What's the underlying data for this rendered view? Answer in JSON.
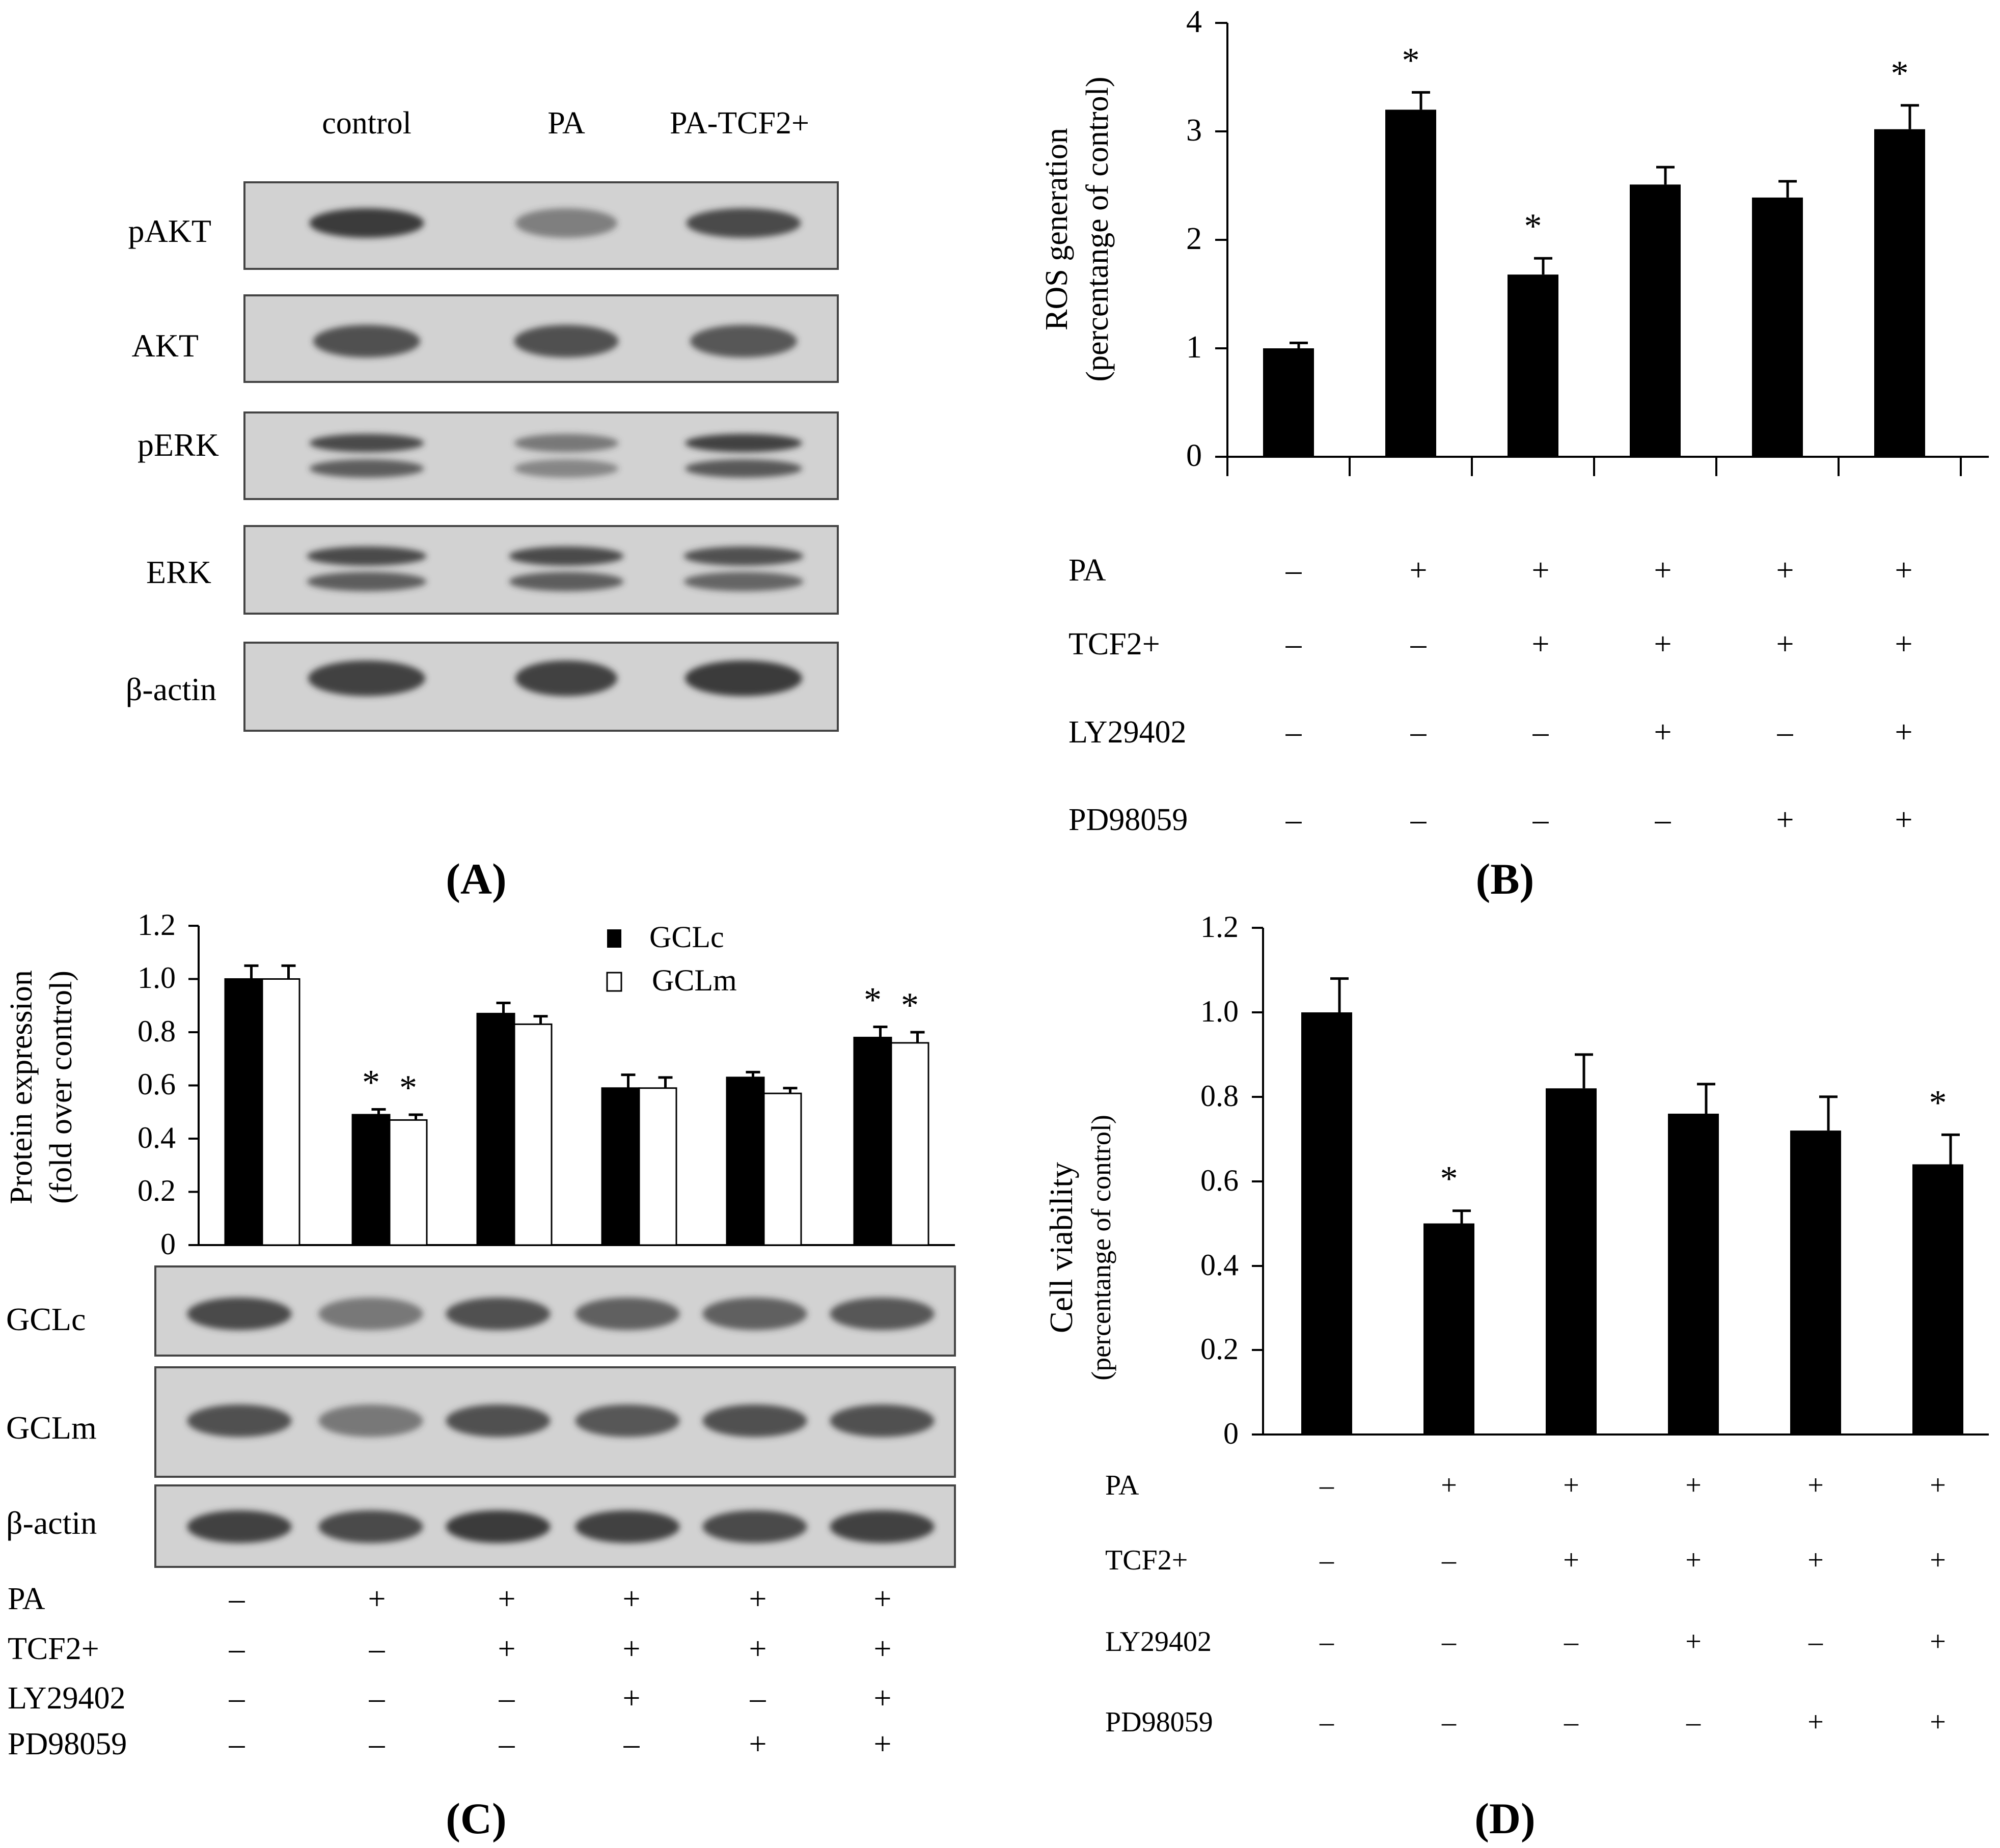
{
  "panels": {
    "A": {
      "label": "(A)",
      "lanes": [
        "control",
        "PA",
        "PA-TCF2+"
      ],
      "rows": [
        "pAKT",
        "AKT",
        "pERK",
        "ERK",
        "β-actin"
      ]
    },
    "B": {
      "label": "(B)"
    },
    "C": {
      "label": "(C)",
      "blot_rows": [
        "GCLc",
        "GCLm",
        "β-actin"
      ]
    },
    "D": {
      "label": "(D)"
    }
  },
  "treatment_rows": [
    "PA",
    "TCF2+",
    "LY29402",
    "PD98059"
  ],
  "treatment_matrix": [
    [
      "–",
      "+",
      "+",
      "+",
      "+",
      "+"
    ],
    [
      "–",
      "–",
      "+",
      "+",
      "+",
      "+"
    ],
    [
      "–",
      "–",
      "–",
      "+",
      "–",
      "+"
    ],
    [
      "–",
      "–",
      "–",
      "–",
      "+",
      "+"
    ]
  ],
  "colors": {
    "bar": "#000000",
    "bar_open": "#ffffff",
    "band": "#3a3a3a",
    "blot_bg": "#d2d2d2"
  },
  "chart_data": [
    {
      "id": "B",
      "type": "bar",
      "ylabel": "ROS generation",
      "ylabel2": "(percentange of control)",
      "ylim": [
        0,
        4
      ],
      "yticks": [
        "0",
        "1",
        "2",
        "3",
        "4"
      ],
      "values": [
        1.0,
        3.2,
        1.68,
        2.51,
        2.39,
        3.02
      ],
      "errors": [
        0.05,
        0.16,
        0.15,
        0.16,
        0.15,
        0.22
      ],
      "significant": [
        false,
        true,
        true,
        false,
        false,
        true
      ],
      "marker": "*"
    },
    {
      "id": "C",
      "type": "bar",
      "ylabel": "Protein expression",
      "ylabel2": "(fold over control)",
      "ylim": [
        0,
        1.2
      ],
      "yticks": [
        "0",
        "0.2",
        "0.4",
        "0.6",
        "0.8",
        "1.0",
        "1.2"
      ],
      "legend": [
        "GCLc",
        "GCLm"
      ],
      "series": [
        {
          "name": "GCLc",
          "values": [
            1.0,
            0.49,
            0.87,
            0.59,
            0.63,
            0.78
          ],
          "errors": [
            0.05,
            0.02,
            0.04,
            0.05,
            0.02,
            0.04
          ],
          "significant": [
            false,
            true,
            false,
            false,
            false,
            true
          ]
        },
        {
          "name": "GCLm",
          "values": [
            1.0,
            0.47,
            0.83,
            0.59,
            0.57,
            0.76
          ],
          "errors": [
            0.05,
            0.02,
            0.03,
            0.04,
            0.02,
            0.04
          ],
          "significant": [
            false,
            true,
            false,
            false,
            false,
            true
          ]
        }
      ],
      "marker": "*"
    },
    {
      "id": "D",
      "type": "bar",
      "ylabel": "Cell viability",
      "ylabel2": "(percentange of control)",
      "ylim": [
        0,
        1.2
      ],
      "yticks": [
        "0",
        "0.2",
        "0.4",
        "0.6",
        "0.8",
        "1.0",
        "1.2"
      ],
      "values": [
        1.0,
        0.5,
        0.82,
        0.76,
        0.72,
        0.64
      ],
      "errors": [
        0.08,
        0.03,
        0.08,
        0.07,
        0.08,
        0.07
      ],
      "significant": [
        false,
        true,
        false,
        false,
        false,
        true
      ],
      "marker": "*"
    }
  ]
}
